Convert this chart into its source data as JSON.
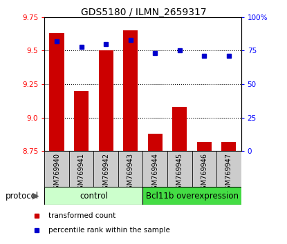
{
  "title": "GDS5180 / ILMN_2659317",
  "samples": [
    "GSM769940",
    "GSM769941",
    "GSM769942",
    "GSM769943",
    "GSM769944",
    "GSM769945",
    "GSM769946",
    "GSM769947"
  ],
  "red_values": [
    9.63,
    9.2,
    9.5,
    9.65,
    8.88,
    9.08,
    8.82,
    8.82
  ],
  "blue_values": [
    82,
    78,
    80,
    83,
    73,
    75,
    71,
    71
  ],
  "ylim_left": [
    8.75,
    9.75
  ],
  "ylim_right": [
    0,
    100
  ],
  "yticks_left": [
    8.75,
    9.0,
    9.25,
    9.5,
    9.75
  ],
  "yticks_right": [
    0,
    25,
    50,
    75,
    100
  ],
  "control_label": "control",
  "overexpression_label": "Bcl11b overexpression",
  "protocol_label": "protocol",
  "legend_red": "transformed count",
  "legend_blue": "percentile rank within the sample",
  "bar_color": "#cc0000",
  "dot_color": "#0000cc",
  "control_bg": "#ccffcc",
  "overexp_bg": "#44dd44",
  "label_bg": "#cccccc",
  "bar_width": 0.6,
  "base_value": 8.75,
  "title_fontsize": 10,
  "tick_fontsize": 7.5,
  "label_fontsize": 7,
  "protocol_fontsize": 8.5,
  "legend_fontsize": 7.5
}
